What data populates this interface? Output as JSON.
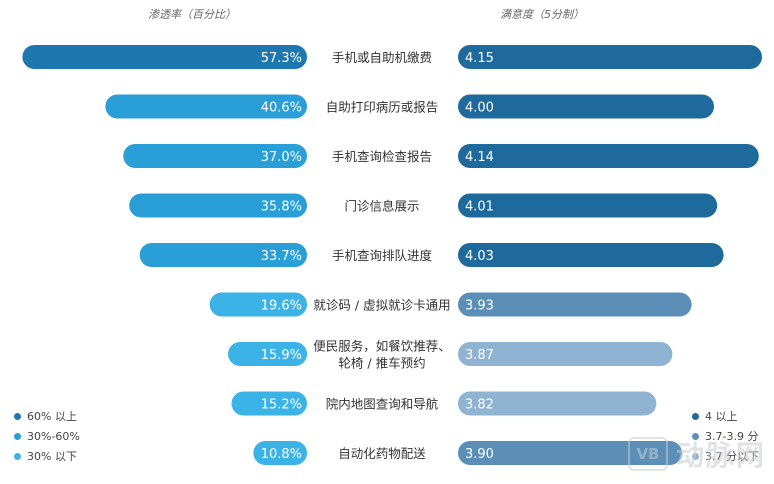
{
  "chart_data": {
    "type": "bar",
    "left_header": "渗透率（百分比）",
    "right_header": "满意度（5分制）",
    "categories": [
      [
        "手机或自助机缴费"
      ],
      [
        "自助打印病历或报告"
      ],
      [
        "手机查询检查报告"
      ],
      [
        "门诊信息展示"
      ],
      [
        "手机查询排队进度"
      ],
      [
        "就诊码 / 虚拟就诊卡通用"
      ],
      [
        "便民服务，如餐饮推荐、",
        "轮椅 / 推车预约"
      ],
      [
        "院内地图查询和导航"
      ],
      [
        "自动化药物配送"
      ]
    ],
    "series": [
      {
        "name": "渗透率（百分比）",
        "values": [
          57.3,
          40.6,
          37.0,
          35.8,
          33.7,
          19.6,
          15.9,
          15.2,
          10.8
        ],
        "labels": [
          "57.3%",
          "40.6%",
          "37.0%",
          "35.8%",
          "33.7%",
          "19.6%",
          "15.9%",
          "15.2%",
          "10.8%"
        ]
      },
      {
        "name": "满意度（5分制）",
        "values": [
          4.15,
          4.0,
          4.14,
          4.01,
          4.03,
          3.93,
          3.87,
          3.82,
          3.9
        ],
        "labels": [
          "4.15",
          "4.00",
          "4.14",
          "4.01",
          "4.03",
          "3.93",
          "3.87",
          "3.82",
          "3.90"
        ]
      }
    ],
    "left_xlim": [
      0,
      60
    ],
    "right_xlim": [
      3.2,
      4.15
    ],
    "left_legend": [
      {
        "label": "60% 以上",
        "color": "#1f77b0"
      },
      {
        "label": "30%-60%",
        "color": "#2a9ed6"
      },
      {
        "label": "30% 以下",
        "color": "#3cb3e6"
      }
    ],
    "right_legend": [
      {
        "label": "4 以上",
        "color": "#1f6a9c"
      },
      {
        "label": "3.7-3.9 分",
        "color": "#5b8fb8"
      },
      {
        "label": "3.7 分以下",
        "color": "#8fb3d0"
      }
    ]
  },
  "watermark": {
    "logo": "VB",
    "text": "动脉网"
  }
}
